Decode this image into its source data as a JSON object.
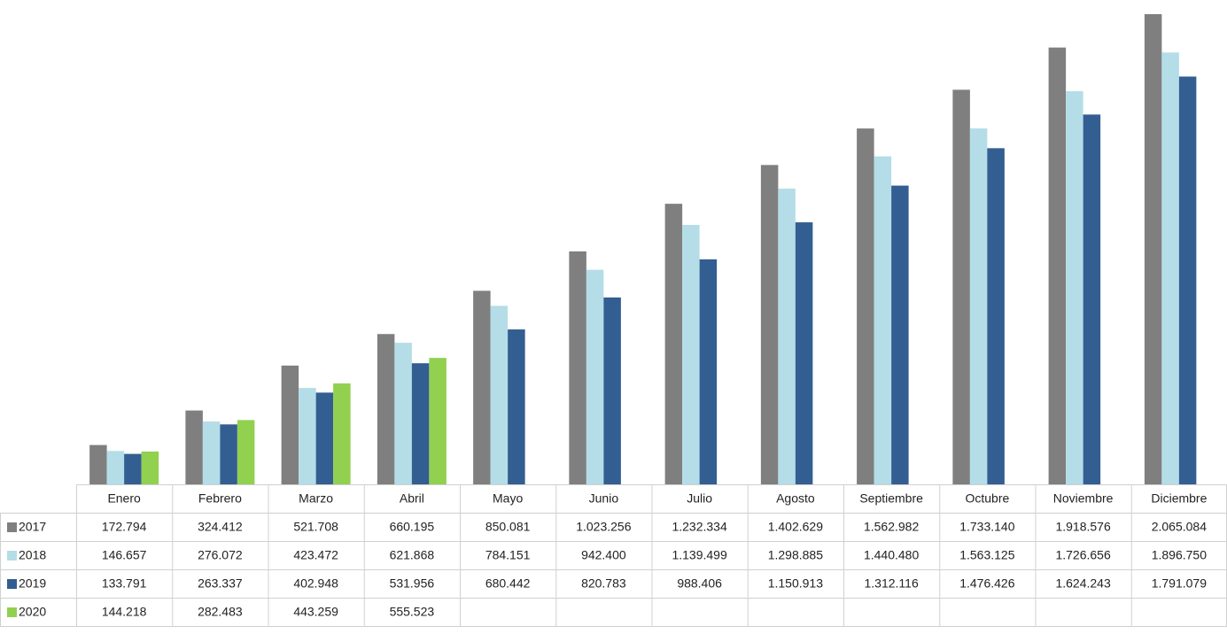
{
  "chart_data": {
    "type": "bar",
    "categories": [
      "Enero",
      "Febrero",
      "Marzo",
      "Abril",
      "Mayo",
      "Junio",
      "Julio",
      "Agosto",
      "Septiembre",
      "Octubre",
      "Noviembre",
      "Diciembre"
    ],
    "series": [
      {
        "name": "2017",
        "color": "#7f7f7f",
        "values": [
          172794,
          324412,
          521708,
          660195,
          850081,
          1023256,
          1232334,
          1402629,
          1562982,
          1733140,
          1918576,
          2065084
        ],
        "value_labels": [
          "172.794",
          "324.412",
          "521.708",
          "660.195",
          "850.081",
          "1.023.256",
          "1.232.334",
          "1.402.629",
          "1.562.982",
          "1.733.140",
          "1.918.576",
          "2.065.084"
        ]
      },
      {
        "name": "2018",
        "color": "#b4dde7",
        "values": [
          146657,
          276072,
          423472,
          621868,
          784151,
          942400,
          1139499,
          1298885,
          1440480,
          1563125,
          1726656,
          1896750
        ],
        "value_labels": [
          "146.657",
          "276.072",
          "423.472",
          "621.868",
          "784.151",
          "942.400",
          "1.139.499",
          "1.298.885",
          "1.440.480",
          "1.563.125",
          "1.726.656",
          "1.896.750"
        ]
      },
      {
        "name": "2019",
        "color": "#335e91",
        "values": [
          133791,
          263337,
          402948,
          531956,
          680442,
          820783,
          988406,
          1150913,
          1312116,
          1476426,
          1624243,
          1791079
        ],
        "value_labels": [
          "133.791",
          "263.337",
          "402.948",
          "531.956",
          "680.442",
          "820.783",
          "988.406",
          "1.150.913",
          "1.312.116",
          "1.476.426",
          "1.624.243",
          "1.791.079"
        ]
      },
      {
        "name": "2020",
        "color": "#92d050",
        "values": [
          144218,
          282483,
          443259,
          555523,
          null,
          null,
          null,
          null,
          null,
          null,
          null,
          null
        ],
        "value_labels": [
          "144.218",
          "282.483",
          "443.259",
          "555.523",
          null,
          null,
          null,
          null,
          null,
          null,
          null,
          null
        ]
      }
    ]
  }
}
